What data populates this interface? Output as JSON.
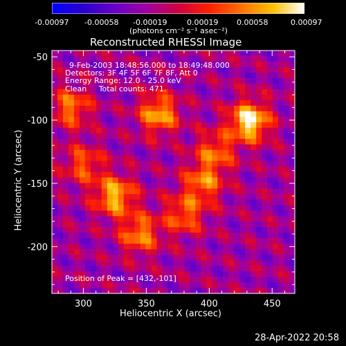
{
  "colorbar": {
    "tick_labels": [
      "-0.00097",
      "-0.00058",
      "-0.00019",
      "0.00019",
      "0.00058",
      "0.00097"
    ],
    "units": "(photons cm⁻² s⁻¹ asec⁻²)",
    "colors": [
      "#0000ff",
      "#2a00d0",
      "#6a00c8",
      "#a000a0",
      "#d00040",
      "#ff2000",
      "#ff7000",
      "#ffc000",
      "#ffffff"
    ]
  },
  "title": "Reconstructed RHESSI Image",
  "annotations": {
    "time_range": "9-Feb-2003 18:48:56.000 to 18:49:48.000",
    "detectors": "Detectors: 3F 4F 5F 6F 7F 8F, Att 0",
    "energy": "Energy Range: 12.0 - 25.0 keV",
    "clean": "Clean     Total counts: 471.",
    "peak": "Position of Peak = [432,-101]"
  },
  "footer_timestamp": "28-Apr-2022 20:58",
  "chart_data": {
    "type": "heatmap",
    "title": "Reconstructed RHESSI Image",
    "xlabel": "Heliocentric X (arcsec)",
    "ylabel": "Heliocentric Y (arcsec)",
    "xlim": [
      275,
      468
    ],
    "ylim": [
      -237,
      -45
    ],
    "xticks": [
      300,
      350,
      400,
      450
    ],
    "yticks": [
      -50,
      -100,
      -150,
      -200
    ],
    "value_range": [
      -0.00097,
      0.00097
    ],
    "peak": [
      432,
      -101
    ],
    "bright_sources": [
      {
        "x": 432,
        "y": -101,
        "level": 1.0
      },
      {
        "x": 360,
        "y": -95,
        "level": 0.75
      },
      {
        "x": 325,
        "y": -160,
        "level": 0.8
      },
      {
        "x": 290,
        "y": -90,
        "level": 0.6
      },
      {
        "x": 345,
        "y": -190,
        "level": 0.65
      },
      {
        "x": 395,
        "y": -150,
        "level": 0.6
      },
      {
        "x": 380,
        "y": -175,
        "level": 0.55
      },
      {
        "x": 405,
        "y": -125,
        "level": 0.55
      },
      {
        "x": 300,
        "y": -135,
        "level": 0.5
      }
    ]
  }
}
